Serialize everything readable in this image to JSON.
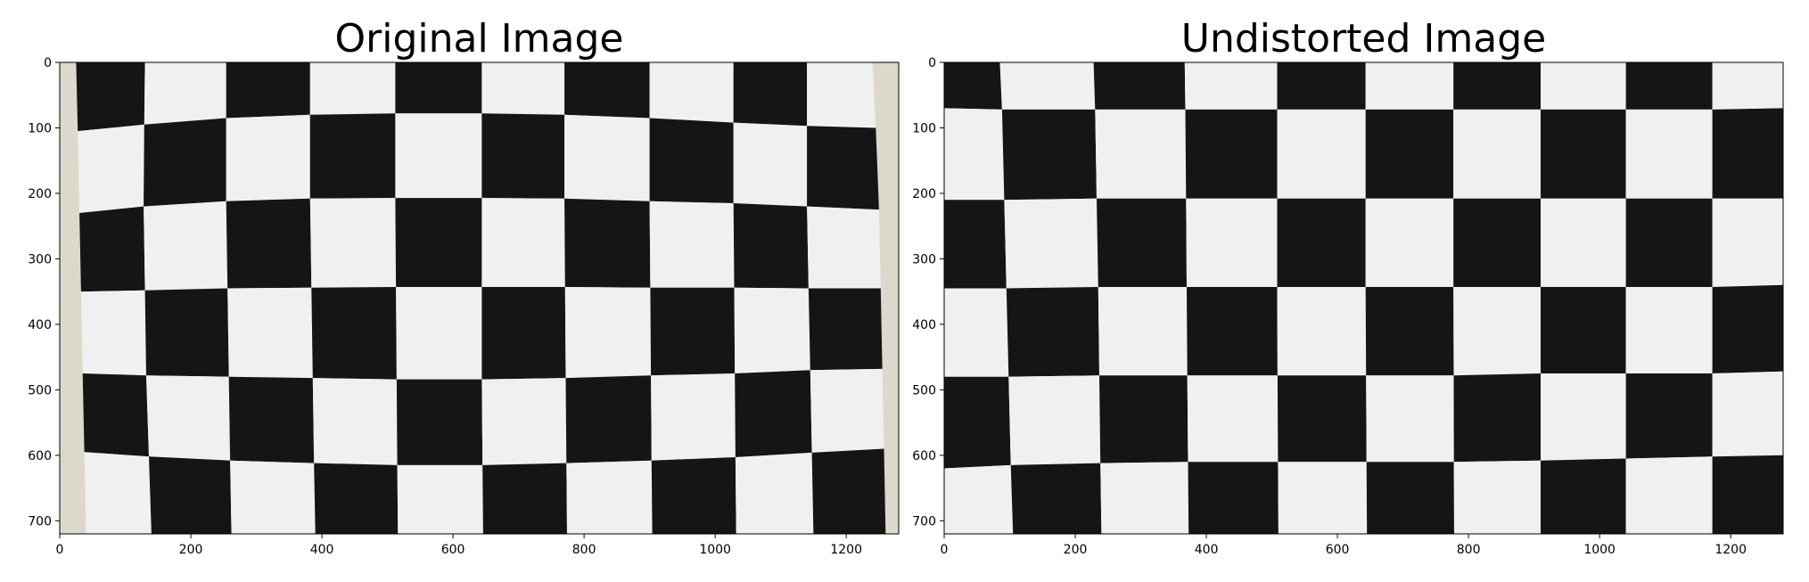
{
  "chart_data": [
    {
      "type": "image",
      "title": "Original Image",
      "xlim": [
        0,
        1280
      ],
      "ylim": [
        720,
        0
      ],
      "xticks": [
        0,
        200,
        400,
        600,
        800,
        1000,
        1200
      ],
      "yticks": [
        0,
        100,
        200,
        300,
        400,
        500,
        600,
        700
      ],
      "image": {
        "content": "checkerboard-distorted",
        "background": "#dcd8cc",
        "dark": "#151515",
        "light": "#f0f0f0",
        "grid_x": [
          [
            25,
            130,
            254,
            382,
            512,
            644,
            770,
            900,
            1028,
            1140,
            1240
          ],
          [
            30,
            128,
            254,
            382,
            512,
            644,
            770,
            900,
            1028,
            1140,
            1250
          ],
          [
            35,
            132,
            258,
            386,
            514,
            644,
            772,
            902,
            1030,
            1145,
            1255
          ],
          [
            40,
            140,
            262,
            390,
            516,
            646,
            774,
            904,
            1032,
            1150,
            1260
          ]
        ],
        "grid_y": [
          [
            0,
            0,
            0,
            0,
            0,
            0,
            0,
            0,
            0,
            0,
            0
          ],
          [
            105,
            95,
            85,
            80,
            78,
            78,
            80,
            85,
            92,
            97,
            100
          ],
          [
            230,
            220,
            212,
            208,
            207,
            207,
            208,
            212,
            215,
            220,
            225
          ],
          [
            350,
            348,
            345,
            344,
            343,
            343,
            343,
            344,
            344,
            345,
            345
          ],
          [
            475,
            478,
            480,
            482,
            484,
            484,
            482,
            478,
            475,
            470,
            468
          ],
          [
            595,
            602,
            608,
            612,
            615,
            615,
            612,
            608,
            603,
            596,
            590
          ],
          [
            720,
            720,
            720,
            720,
            720,
            720,
            720,
            720,
            720,
            720,
            720
          ]
        ]
      }
    },
    {
      "type": "image",
      "title": "Undistorted Image",
      "xlim": [
        0,
        1280
      ],
      "ylim": [
        720,
        0
      ],
      "xticks": [
        0,
        200,
        400,
        600,
        800,
        1000,
        1200
      ],
      "yticks": [
        0,
        100,
        200,
        300,
        400,
        500,
        600,
        700
      ],
      "image": {
        "content": "checkerboard-undistorted",
        "background": "#f0f0f0",
        "dark": "#151515",
        "light": "#f0f0f0",
        "grid_x": [
          [
            0,
            85,
            228,
            367,
            508,
            643,
            777,
            910,
            1040,
            1172,
            1280
          ],
          [
            0,
            95,
            235,
            370,
            508,
            643,
            777,
            910,
            1040,
            1172,
            1280
          ],
          [
            0,
            105,
            240,
            373,
            510,
            645,
            778,
            910,
            1040,
            1172,
            1280
          ]
        ],
        "grid_y": [
          [
            0,
            0,
            0,
            0,
            0,
            0,
            0,
            0,
            0,
            0,
            0
          ],
          [
            70,
            72,
            72,
            72,
            72,
            72,
            72,
            72,
            72,
            72,
            70
          ],
          [
            210,
            210,
            208,
            208,
            208,
            208,
            208,
            208,
            208,
            208,
            208
          ],
          [
            345,
            345,
            343,
            343,
            343,
            343,
            343,
            343,
            343,
            343,
            340
          ],
          [
            480,
            480,
            478,
            478,
            478,
            478,
            478,
            475,
            475,
            475,
            472
          ],
          [
            620,
            615,
            612,
            610,
            610,
            610,
            610,
            608,
            605,
            602,
            600
          ],
          [
            720,
            720,
            720,
            720,
            720,
            720,
            720,
            720,
            720,
            720,
            720
          ]
        ]
      }
    }
  ]
}
